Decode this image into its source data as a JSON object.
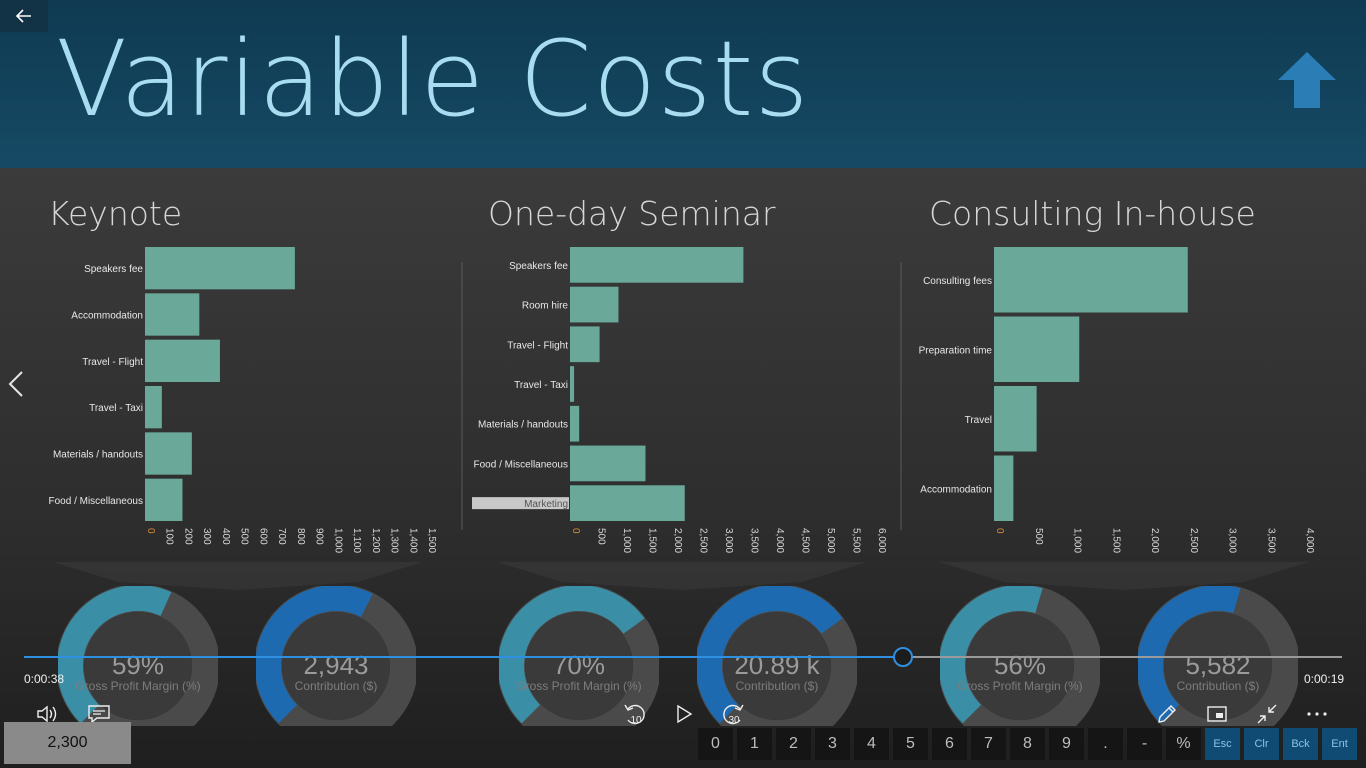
{
  "slide": {
    "title": "Variable Costs"
  },
  "controls": {
    "elapsed": "0:00:38",
    "remaining": "0:00:19",
    "progress": 0.667,
    "rewind_label": "10",
    "forward_label": "30"
  },
  "panels": [
    {
      "title": "Keynote"
    },
    {
      "title": "One-day Seminar"
    },
    {
      "title": "Consulting In-house"
    }
  ],
  "chart_data": [
    {
      "type": "bar",
      "orientation": "horizontal",
      "title": "Keynote",
      "categories": [
        "Speakers fee",
        "Accommodation",
        "Travel - Flight",
        "Travel - Taxi",
        "Materials / handouts",
        "Food / Miscellaneous"
      ],
      "values": [
        800,
        290,
        400,
        90,
        250,
        200
      ],
      "xticks": [
        "0",
        "100",
        "200",
        "300",
        "400",
        "500",
        "600",
        "700",
        "800",
        "900",
        "1,000",
        "1,100",
        "1,200",
        "1,300",
        "1,400",
        "1,500"
      ],
      "xlim": [
        0,
        1500
      ],
      "grid": false
    },
    {
      "type": "bar",
      "orientation": "horizontal",
      "title": "One-day Seminar",
      "categories": [
        "Speakers fee",
        "Room hire",
        "Travel - Flight",
        "Travel - Taxi",
        "Materials / handouts",
        "Food / Miscellaneous",
        "Marketing"
      ],
      "values": [
        3400,
        950,
        580,
        80,
        180,
        1480,
        2250
      ],
      "xticks": [
        "0",
        "500",
        "1,000",
        "1,500",
        "2,000",
        "2,500",
        "3,000",
        "3,500",
        "4,000",
        "4,500",
        "5,000",
        "5,500",
        "6,000"
      ],
      "xlim": [
        0,
        6000
      ],
      "grid": false
    },
    {
      "type": "bar",
      "orientation": "horizontal",
      "title": "Consulting In-house",
      "categories": [
        "Consulting fees",
        "Preparation time",
        "Travel",
        "Accommodation"
      ],
      "values": [
        2500,
        1100,
        550,
        250
      ],
      "xticks": [
        "0",
        "500",
        "1,000",
        "1,500",
        "2,000",
        "2,500",
        "3,000",
        "3,500",
        "4,000"
      ],
      "xlim": [
        0,
        4000
      ],
      "grid": false
    }
  ],
  "gauges": [
    {
      "value": "59%",
      "label": "Gross Profit Margin (%)",
      "fill": 0.59,
      "color": "#3a8fa6"
    },
    {
      "value": "2,943",
      "label": "Contribution ($)",
      "fill": 0.6,
      "color": "#1e6ab0"
    },
    {
      "value": "70%",
      "label": "Gross Profit Margin (%)",
      "fill": 0.7,
      "color": "#3a8fa6"
    },
    {
      "value": "20.89 k",
      "label": "Contribution ($)",
      "fill": 0.7,
      "color": "#1e6ab0"
    },
    {
      "value": "56%",
      "label": "Gross Profit Margin (%)",
      "fill": 0.56,
      "color": "#3a8fa6"
    },
    {
      "value": "5,582",
      "label": "Contribution ($)",
      "fill": 0.56,
      "color": "#1e6ab0"
    }
  ],
  "calculator": {
    "display": "2,300",
    "keys": [
      "0",
      "1",
      "2",
      "3",
      "4",
      "5",
      "6",
      "7",
      "8",
      "9",
      ".",
      "-",
      "%"
    ],
    "fn_keys": [
      "Esc",
      "Clr",
      "Bck",
      "Ent"
    ]
  },
  "colors": {
    "bar": "#6aa99a",
    "accent": "#2f8fe0",
    "title": "#a8dcf0"
  }
}
